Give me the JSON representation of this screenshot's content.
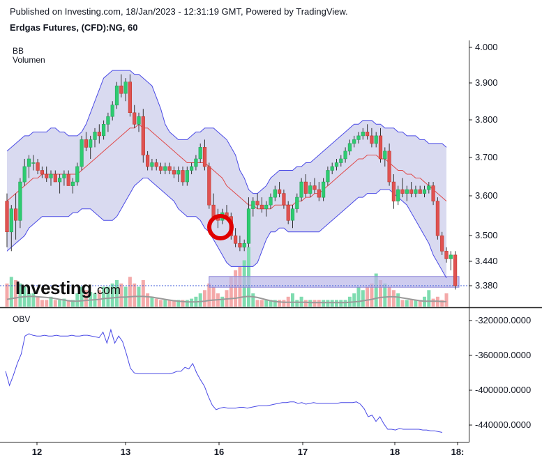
{
  "header": {
    "published": "Published on Investing.com, 18/Jan/2023 - 12:31:19 GMT, Powered by TradingView.",
    "title": "Erdgas Futures, (CFD):NG, 60"
  },
  "indicators": {
    "bb": "BB",
    "volume": "Volumen",
    "obv": "OBV"
  },
  "watermark": "Investing.com",
  "colors": {
    "up": "#26a65b",
    "up_fill": "#2ecc71",
    "down": "#c0392b",
    "down_fill": "#e05252",
    "bb_band": "#4a4ae6",
    "bb_basis": "#e04848",
    "bb_fill": "#d9daf0",
    "vol_up": "#7fdcb0",
    "vol_down": "#f4a9a9",
    "obv_line": "#4a4ae6",
    "marker_circle": "#e00000"
  },
  "chart_data": [
    {
      "type": "candlestick",
      "title": "Erdgas Futures, (CFD):NG, 60",
      "x_labels": [
        "12",
        "13",
        "16",
        "17",
        "18",
        "18:"
      ],
      "y_ticks": [
        "4.000",
        "3.900",
        "3.800",
        "3.700",
        "3.600",
        "3.500",
        "3.440",
        "3.380"
      ],
      "ylim": [
        3.35,
        4.02
      ],
      "current_price": 3.38,
      "ohlc": [
        [
          3.6,
          3.62,
          3.48,
          3.52
        ],
        [
          3.52,
          3.59,
          3.47,
          3.58
        ],
        [
          3.58,
          3.62,
          3.5,
          3.55
        ],
        [
          3.55,
          3.66,
          3.53,
          3.65
        ],
        [
          3.65,
          3.71,
          3.64,
          3.69
        ],
        [
          3.69,
          3.72,
          3.66,
          3.71
        ],
        [
          3.7,
          3.72,
          3.68,
          3.7
        ],
        [
          3.7,
          3.71,
          3.67,
          3.68
        ],
        [
          3.68,
          3.69,
          3.66,
          3.67
        ],
        [
          3.67,
          3.69,
          3.65,
          3.66
        ],
        [
          3.66,
          3.68,
          3.64,
          3.67
        ],
        [
          3.67,
          3.68,
          3.65,
          3.65
        ],
        [
          3.65,
          3.67,
          3.62,
          3.66
        ],
        [
          3.66,
          3.68,
          3.64,
          3.67
        ],
        [
          3.67,
          3.68,
          3.64,
          3.64
        ],
        [
          3.64,
          3.66,
          3.62,
          3.65
        ],
        [
          3.65,
          3.7,
          3.64,
          3.69
        ],
        [
          3.69,
          3.77,
          3.68,
          3.76
        ],
        [
          3.76,
          3.78,
          3.73,
          3.74
        ],
        [
          3.74,
          3.77,
          3.71,
          3.76
        ],
        [
          3.76,
          3.79,
          3.74,
          3.78
        ],
        [
          3.78,
          3.8,
          3.75,
          3.77
        ],
        [
          3.77,
          3.81,
          3.76,
          3.8
        ],
        [
          3.8,
          3.83,
          3.78,
          3.82
        ],
        [
          3.82,
          3.86,
          3.81,
          3.85
        ],
        [
          3.85,
          3.91,
          3.84,
          3.9
        ],
        [
          3.9,
          3.93,
          3.87,
          3.88
        ],
        [
          3.88,
          3.92,
          3.86,
          3.91
        ],
        [
          3.91,
          3.93,
          3.82,
          3.83
        ],
        [
          3.83,
          3.85,
          3.79,
          3.8
        ],
        [
          3.8,
          3.83,
          3.78,
          3.82
        ],
        [
          3.82,
          3.84,
          3.7,
          3.72
        ],
        [
          3.72,
          3.73,
          3.68,
          3.69
        ],
        [
          3.69,
          3.71,
          3.68,
          3.7
        ],
        [
          3.7,
          3.71,
          3.68,
          3.69
        ],
        [
          3.69,
          3.7,
          3.67,
          3.68
        ],
        [
          3.68,
          3.7,
          3.67,
          3.69
        ],
        [
          3.69,
          3.7,
          3.67,
          3.68
        ],
        [
          3.68,
          3.69,
          3.66,
          3.67
        ],
        [
          3.67,
          3.69,
          3.65,
          3.68
        ],
        [
          3.68,
          3.69,
          3.64,
          3.65
        ],
        [
          3.65,
          3.69,
          3.64,
          3.68
        ],
        [
          3.68,
          3.7,
          3.67,
          3.69
        ],
        [
          3.69,
          3.72,
          3.68,
          3.71
        ],
        [
          3.71,
          3.75,
          3.7,
          3.74
        ],
        [
          3.74,
          3.76,
          3.68,
          3.69
        ],
        [
          3.69,
          3.7,
          3.58,
          3.59
        ],
        [
          3.59,
          3.62,
          3.55,
          3.56
        ],
        [
          3.56,
          3.58,
          3.53,
          3.55
        ],
        [
          3.55,
          3.58,
          3.54,
          3.57
        ],
        [
          3.57,
          3.59,
          3.55,
          3.56
        ],
        [
          3.56,
          3.57,
          3.5,
          3.51
        ],
        [
          3.51,
          3.53,
          3.48,
          3.49
        ],
        [
          3.49,
          3.51,
          3.47,
          3.48
        ],
        [
          3.48,
          3.5,
          3.47,
          3.49
        ],
        [
          3.49,
          3.61,
          3.48,
          3.58
        ],
        [
          3.58,
          3.61,
          3.56,
          3.6
        ],
        [
          3.6,
          3.62,
          3.58,
          3.59
        ],
        [
          3.59,
          3.61,
          3.57,
          3.58
        ],
        [
          3.58,
          3.6,
          3.56,
          3.59
        ],
        [
          3.59,
          3.62,
          3.58,
          3.61
        ],
        [
          3.61,
          3.64,
          3.6,
          3.63
        ],
        [
          3.63,
          3.65,
          3.61,
          3.62
        ],
        [
          3.62,
          3.63,
          3.58,
          3.59
        ],
        [
          3.59,
          3.6,
          3.54,
          3.55
        ],
        [
          3.55,
          3.59,
          3.53,
          3.58
        ],
        [
          3.58,
          3.62,
          3.57,
          3.61
        ],
        [
          3.61,
          3.66,
          3.6,
          3.65
        ],
        [
          3.65,
          3.67,
          3.61,
          3.62
        ],
        [
          3.62,
          3.65,
          3.61,
          3.64
        ],
        [
          3.64,
          3.66,
          3.62,
          3.63
        ],
        [
          3.63,
          3.65,
          3.6,
          3.61
        ],
        [
          3.61,
          3.66,
          3.6,
          3.65
        ],
        [
          3.65,
          3.69,
          3.64,
          3.68
        ],
        [
          3.68,
          3.7,
          3.67,
          3.69
        ],
        [
          3.69,
          3.71,
          3.68,
          3.7
        ],
        [
          3.7,
          3.72,
          3.69,
          3.71
        ],
        [
          3.71,
          3.74,
          3.7,
          3.73
        ],
        [
          3.73,
          3.76,
          3.72,
          3.75
        ],
        [
          3.75,
          3.77,
          3.74,
          3.76
        ],
        [
          3.76,
          3.78,
          3.75,
          3.77
        ],
        [
          3.77,
          3.79,
          3.76,
          3.78
        ],
        [
          3.78,
          3.8,
          3.76,
          3.77
        ],
        [
          3.77,
          3.79,
          3.74,
          3.75
        ],
        [
          3.75,
          3.78,
          3.74,
          3.77
        ],
        [
          3.77,
          3.79,
          3.7,
          3.71
        ],
        [
          3.71,
          3.74,
          3.69,
          3.73
        ],
        [
          3.73,
          3.75,
          3.64,
          3.65
        ],
        [
          3.65,
          3.67,
          3.58,
          3.6
        ],
        [
          3.6,
          3.64,
          3.59,
          3.63
        ],
        [
          3.63,
          3.66,
          3.61,
          3.62
        ],
        [
          3.62,
          3.64,
          3.6,
          3.63
        ],
        [
          3.63,
          3.65,
          3.61,
          3.62
        ],
        [
          3.62,
          3.64,
          3.61,
          3.63
        ],
        [
          3.63,
          3.64,
          3.62,
          3.62
        ],
        [
          3.62,
          3.64,
          3.61,
          3.63
        ],
        [
          3.63,
          3.65,
          3.62,
          3.64
        ],
        [
          3.64,
          3.65,
          3.59,
          3.6
        ],
        [
          3.6,
          3.61,
          3.5,
          3.51
        ],
        [
          3.51,
          3.52,
          3.46,
          3.47
        ],
        [
          3.47,
          3.48,
          3.44,
          3.45
        ],
        [
          3.45,
          3.47,
          3.42,
          3.46
        ],
        [
          3.46,
          3.47,
          3.37,
          3.38
        ]
      ],
      "bollinger": {
        "upper": [
          3.73,
          3.74,
          3.75,
          3.76,
          3.77,
          3.77,
          3.78,
          3.78,
          3.78,
          3.78,
          3.79,
          3.79,
          3.78,
          3.78,
          3.77,
          3.77,
          3.77,
          3.78,
          3.8,
          3.83,
          3.86,
          3.89,
          3.92,
          3.93,
          3.94,
          3.94,
          3.94,
          3.94,
          3.94,
          3.93,
          3.93,
          3.92,
          3.91,
          3.9,
          3.87,
          3.84,
          3.8,
          3.78,
          3.77,
          3.76,
          3.76,
          3.76,
          3.77,
          3.78,
          3.78,
          3.79,
          3.79,
          3.79,
          3.78,
          3.77,
          3.76,
          3.74,
          3.72,
          3.68,
          3.66,
          3.63,
          3.62,
          3.62,
          3.63,
          3.64,
          3.66,
          3.67,
          3.68,
          3.68,
          3.68,
          3.68,
          3.69,
          3.69,
          3.7,
          3.7,
          3.71,
          3.72,
          3.73,
          3.74,
          3.75,
          3.76,
          3.77,
          3.78,
          3.79,
          3.8,
          3.8,
          3.81,
          3.81,
          3.81,
          3.8,
          3.8,
          3.79,
          3.79,
          3.79,
          3.78,
          3.78,
          3.77,
          3.77,
          3.77,
          3.76,
          3.76,
          3.75,
          3.75,
          3.75,
          3.75,
          3.74
        ],
        "basis": [
          3.6,
          3.61,
          3.62,
          3.63,
          3.64,
          3.65,
          3.66,
          3.66,
          3.67,
          3.67,
          3.67,
          3.67,
          3.67,
          3.67,
          3.67,
          3.67,
          3.67,
          3.68,
          3.69,
          3.7,
          3.71,
          3.72,
          3.73,
          3.74,
          3.75,
          3.76,
          3.77,
          3.78,
          3.79,
          3.79,
          3.8,
          3.79,
          3.79,
          3.78,
          3.77,
          3.76,
          3.75,
          3.74,
          3.73,
          3.72,
          3.71,
          3.7,
          3.7,
          3.7,
          3.7,
          3.7,
          3.69,
          3.68,
          3.67,
          3.66,
          3.64,
          3.63,
          3.62,
          3.61,
          3.6,
          3.59,
          3.59,
          3.58,
          3.58,
          3.58,
          3.58,
          3.59,
          3.59,
          3.59,
          3.59,
          3.59,
          3.6,
          3.6,
          3.61,
          3.61,
          3.62,
          3.62,
          3.63,
          3.64,
          3.65,
          3.66,
          3.67,
          3.68,
          3.69,
          3.7,
          3.71,
          3.71,
          3.72,
          3.72,
          3.72,
          3.71,
          3.71,
          3.7,
          3.69,
          3.68,
          3.68,
          3.67,
          3.67,
          3.66,
          3.66,
          3.65,
          3.64,
          3.63,
          3.62,
          3.61,
          3.6
        ],
        "lower": [
          3.47,
          3.48,
          3.49,
          3.5,
          3.51,
          3.53,
          3.54,
          3.55,
          3.56,
          3.56,
          3.56,
          3.56,
          3.56,
          3.56,
          3.56,
          3.57,
          3.57,
          3.58,
          3.58,
          3.58,
          3.57,
          3.56,
          3.55,
          3.55,
          3.55,
          3.56,
          3.58,
          3.6,
          3.62,
          3.64,
          3.65,
          3.66,
          3.66,
          3.65,
          3.64,
          3.63,
          3.62,
          3.61,
          3.6,
          3.58,
          3.57,
          3.56,
          3.56,
          3.56,
          3.55,
          3.53,
          3.52,
          3.5,
          3.48,
          3.46,
          3.44,
          3.43,
          3.43,
          3.43,
          3.43,
          3.43,
          3.43,
          3.44,
          3.47,
          3.5,
          3.52,
          3.52,
          3.53,
          3.53,
          3.52,
          3.52,
          3.52,
          3.52,
          3.52,
          3.52,
          3.52,
          3.52,
          3.53,
          3.54,
          3.55,
          3.56,
          3.57,
          3.58,
          3.59,
          3.6,
          3.61,
          3.61,
          3.62,
          3.62,
          3.62,
          3.63,
          3.63,
          3.63,
          3.62,
          3.61,
          3.6,
          3.59,
          3.57,
          3.55,
          3.53,
          3.51,
          3.49,
          3.46,
          3.44,
          3.42,
          3.4
        ]
      },
      "volume": [
        0.35,
        0.45,
        0.4,
        0.35,
        0.3,
        0.2,
        0.2,
        0.15,
        0.1,
        0.1,
        0.15,
        0.1,
        0.1,
        0.12,
        0.1,
        0.1,
        0.2,
        0.3,
        0.25,
        0.22,
        0.2,
        0.25,
        0.3,
        0.3,
        0.35,
        0.4,
        0.35,
        0.3,
        0.45,
        0.35,
        0.3,
        0.4,
        0.2,
        0.15,
        0.12,
        0.1,
        0.1,
        0.1,
        0.1,
        0.1,
        0.1,
        0.1,
        0.12,
        0.15,
        0.2,
        0.25,
        0.35,
        0.3,
        0.2,
        0.15,
        0.25,
        0.45,
        0.55,
        0.6,
        0.7,
        0.9,
        0.2,
        0.1,
        0.1,
        0.1,
        0.1,
        0.1,
        0.1,
        0.1,
        0.15,
        0.2,
        0.1,
        0.15,
        0.1,
        0.1,
        0.1,
        0.1,
        0.1,
        0.1,
        0.1,
        0.1,
        0.1,
        0.1,
        0.15,
        0.2,
        0.3,
        0.25,
        0.3,
        0.35,
        0.5,
        0.4,
        0.35,
        0.3,
        0.25,
        0.2,
        0.1,
        0.1,
        0.1,
        0.1,
        0.1,
        0.15,
        0.25,
        0.12,
        0.15,
        0.1,
        0.2
      ],
      "volume_ma": [
        0.2,
        0.22,
        0.24,
        0.26,
        0.27,
        0.28,
        0.28,
        0.27,
        0.26,
        0.25,
        0.24,
        0.22,
        0.2,
        0.18,
        0.16,
        0.15,
        0.15,
        0.16,
        0.17,
        0.18,
        0.19,
        0.2,
        0.22,
        0.23,
        0.24,
        0.25,
        0.26,
        0.26,
        0.27,
        0.28,
        0.28,
        0.28,
        0.27,
        0.26,
        0.24,
        0.22,
        0.2,
        0.18,
        0.16,
        0.15,
        0.14,
        0.13,
        0.13,
        0.13,
        0.14,
        0.15,
        0.17,
        0.18,
        0.19,
        0.2,
        0.21,
        0.22,
        0.23,
        0.25,
        0.27,
        0.28,
        0.27,
        0.25,
        0.22,
        0.19,
        0.16,
        0.14,
        0.13,
        0.12,
        0.12,
        0.12,
        0.12,
        0.12,
        0.12,
        0.11,
        0.11,
        0.11,
        0.11,
        0.11,
        0.11,
        0.11,
        0.11,
        0.11,
        0.12,
        0.13,
        0.14,
        0.16,
        0.18,
        0.2,
        0.23,
        0.25,
        0.26,
        0.27,
        0.27,
        0.26,
        0.24,
        0.22,
        0.2,
        0.18,
        0.16,
        0.15,
        0.15,
        0.15,
        0.15,
        0.14,
        0.14
      ],
      "price_highlight_band": [
        3.382,
        3.392
      ],
      "annotation": "red-circle-marker"
    },
    {
      "type": "line",
      "title": "OBV",
      "y_ticks": [
        "-320000.0000",
        "-360000.0000",
        "-400000.0000",
        "-440000.0000"
      ],
      "ylim": [
        -452000,
        -307000
      ],
      "values": [
        -370000,
        -388000,
        -375000,
        -360000,
        -348000,
        -325000,
        -322000,
        -324000,
        -325000,
        -325000,
        -324000,
        -325000,
        -325000,
        -324000,
        -325000,
        -325000,
        -325000,
        -324000,
        -325000,
        -325000,
        -324000,
        -324000,
        -325000,
        -326000,
        -327000,
        -320000,
        -334000,
        -317000,
        -334000,
        -325000,
        -332000,
        -348000,
        -366000,
        -372000,
        -373000,
        -373000,
        -373000,
        -373000,
        -373000,
        -373000,
        -373000,
        -373000,
        -373000,
        -372000,
        -370000,
        -370000,
        -365000,
        -367000,
        -360000,
        -372000,
        -381000,
        -389000,
        -402000,
        -413000,
        -419000,
        -417000,
        -416000,
        -417000,
        -417000,
        -417000,
        -416000,
        -416000,
        -417000,
        -416000,
        -415000,
        -414000,
        -414000,
        -414000,
        -413000,
        -412000,
        -411000,
        -410000,
        -410000,
        -409000,
        -409000,
        -411000,
        -410000,
        -412000,
        -411000,
        -410000,
        -411000,
        -411000,
        -411000,
        -411000,
        -411000,
        -411000,
        -410000,
        -410000,
        -410000,
        -410000,
        -409000,
        -412000,
        -418000,
        -428000,
        -426000,
        -434000,
        -428000,
        -437000,
        -444000,
        -444000,
        -445000,
        -443000,
        -444000,
        -444000,
        -444000,
        -444000,
        -444000,
        -445000,
        -445000,
        -446000,
        -446000,
        -447000,
        -448000
      ]
    }
  ]
}
